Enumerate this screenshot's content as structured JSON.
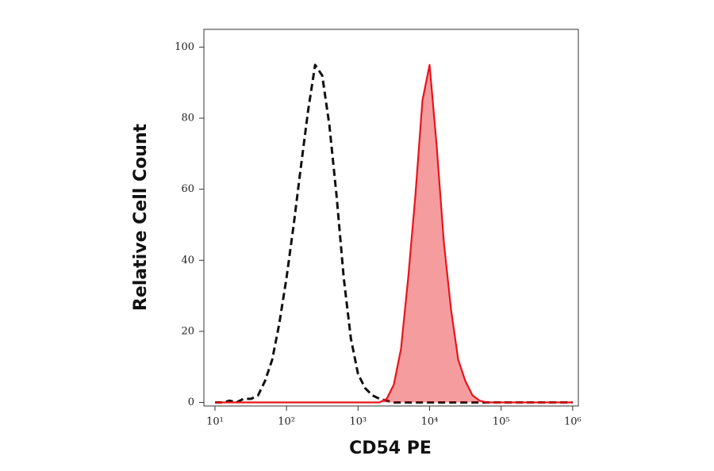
{
  "chart_data": {
    "type": "line",
    "x_label": "CD54 PE",
    "y_label": "Relative Cell Count",
    "xscale": "log",
    "xlim": [
      7,
      1200000
    ],
    "xticks": [
      {
        "value": 10,
        "label": "10¹"
      },
      {
        "value": 100,
        "label": "10²"
      },
      {
        "value": 1000,
        "label": "10³"
      },
      {
        "value": 10000,
        "label": "10⁴"
      },
      {
        "value": 100000,
        "label": "10⁵"
      },
      {
        "value": 1000000,
        "label": "10⁶"
      }
    ],
    "ylim": [
      -1,
      105
    ],
    "yticks": [
      0,
      20,
      40,
      60,
      80,
      100
    ],
    "x": [
      10,
      13,
      16,
      20,
      25,
      32,
      40,
      50,
      63,
      79,
      100,
      126,
      158,
      200,
      251,
      316,
      398,
      501,
      631,
      794,
      1000,
      1259,
      1585,
      1995,
      2512,
      3162,
      3981,
      5012,
      6310,
      7943,
      10000,
      12589,
      15849,
      19953,
      25119,
      31623,
      39811,
      50119,
      63096,
      79433,
      100000,
      158489,
      251189,
      398107,
      630957,
      1000000
    ],
    "series": [
      {
        "color": "#111111",
        "dashed": true,
        "filled": false,
        "values": [
          0,
          0,
          0.5,
          0,
          1,
          1,
          2,
          6,
          12,
          22,
          35,
          50,
          66,
          82,
          95,
          92,
          78,
          58,
          35,
          18,
          8,
          4,
          2,
          1,
          0.5,
          0,
          0,
          0,
          0,
          0,
          0,
          0,
          0,
          0,
          0,
          0,
          0,
          0,
          0,
          0,
          0,
          0,
          0,
          0,
          0,
          0
        ]
      },
      {
        "color": "#e8141b",
        "dashed": false,
        "filled": true,
        "values": [
          0,
          0,
          0,
          0,
          0,
          0,
          0,
          0,
          0,
          0,
          0,
          0,
          0,
          0,
          0,
          0,
          0,
          0,
          0,
          0,
          0,
          0,
          0,
          0,
          1,
          5,
          15,
          35,
          58,
          85,
          95,
          72,
          45,
          26,
          12,
          6,
          2,
          0.5,
          0,
          0,
          0,
          0,
          0,
          0,
          0,
          0
        ]
      }
    ]
  }
}
